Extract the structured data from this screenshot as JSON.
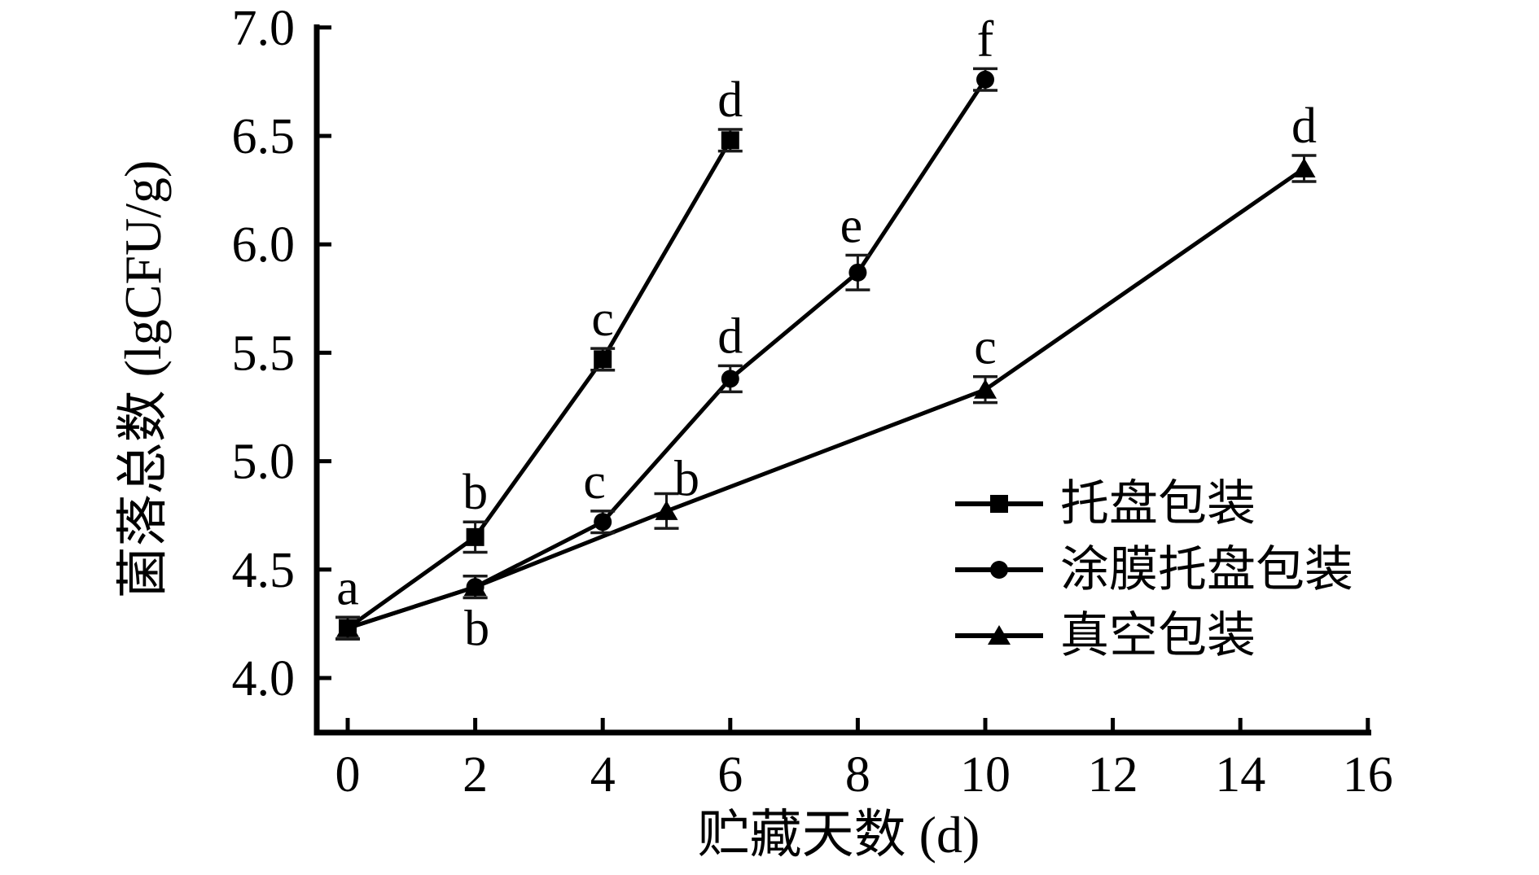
{
  "figure": {
    "description": "Line chart of total bacterial colony count versus storage days for three packaging methods",
    "background_color": "#ffffff",
    "foreground_color": "#000000"
  },
  "chart_data": {
    "type": "line",
    "title": "",
    "xlabel": "贮藏天数 (d)",
    "ylabel": "菌落总数 (lgCFU/g)",
    "xlim": [
      0,
      16
    ],
    "ylim": [
      4.0,
      7.0
    ],
    "grid": false,
    "legend_position": "lower right inside",
    "x_ticks": [
      0,
      2,
      4,
      6,
      8,
      10,
      12,
      14,
      16
    ],
    "y_ticks": [
      "4.0",
      "4.5",
      "5.0",
      "5.5",
      "6.0",
      "6.5",
      "7.0"
    ],
    "series": [
      {
        "name": "托盘包装",
        "marker": "square",
        "color": "#000000",
        "points": [
          {
            "x": 0,
            "y": 4.23,
            "err": 0.05,
            "label": "a",
            "side": "above",
            "dx": 0,
            "dy": 0
          },
          {
            "x": 2,
            "y": 4.65,
            "err": 0.07,
            "label": "b",
            "side": "above",
            "dx": 0,
            "dy": 0
          },
          {
            "x": 4,
            "y": 5.47,
            "err": 0.05,
            "label": "c",
            "side": "above",
            "dx": 0,
            "dy": 0
          },
          {
            "x": 6,
            "y": 6.48,
            "err": 0.05,
            "label": "d",
            "side": "above",
            "dx": 0,
            "dy": 0
          }
        ]
      },
      {
        "name": "涂膜托盘包装",
        "marker": "circle",
        "color": "#000000",
        "points": [
          {
            "x": 0,
            "y": 4.23,
            "err": 0.05,
            "label": "",
            "side": "above",
            "dx": 0,
            "dy": 0
          },
          {
            "x": 2,
            "y": 4.42,
            "err": 0.05,
            "label": "b",
            "side": "below",
            "dx": 2,
            "dy": 0
          },
          {
            "x": 4,
            "y": 4.72,
            "err": 0.05,
            "label": "c",
            "side": "above",
            "dx": -10,
            "dy": 0
          },
          {
            "x": 6,
            "y": 5.38,
            "err": 0.06,
            "label": "d",
            "side": "above",
            "dx": 0,
            "dy": 0
          },
          {
            "x": 8,
            "y": 5.87,
            "err": 0.08,
            "label": "e",
            "side": "above",
            "dx": -8,
            "dy": 0
          },
          {
            "x": 10,
            "y": 6.76,
            "err": 0.05,
            "label": "f",
            "side": "above",
            "dx": 0,
            "dy": 0
          }
        ]
      },
      {
        "name": "真空包装",
        "marker": "triangle",
        "color": "#000000",
        "points": [
          {
            "x": 0,
            "y": 4.23,
            "err": 0.05,
            "label": "",
            "side": "above",
            "dx": 0,
            "dy": 0
          },
          {
            "x": 2,
            "y": 4.42,
            "err": 0.05,
            "label": "",
            "side": "above",
            "dx": 0,
            "dy": 0
          },
          {
            "x": 5,
            "y": 4.77,
            "err": 0.08,
            "label": "b",
            "side": "above",
            "dx": 25,
            "dy": 18
          },
          {
            "x": 10,
            "y": 5.33,
            "err": 0.06,
            "label": "c",
            "side": "above",
            "dx": 0,
            "dy": 0
          },
          {
            "x": 15,
            "y": 6.35,
            "err": 0.06,
            "label": "d",
            "side": "above",
            "dx": 0,
            "dy": 0
          }
        ]
      }
    ],
    "legend": {
      "items": [
        {
          "label": "托盘包装",
          "marker": "square"
        },
        {
          "label": "涂膜托盘包装",
          "marker": "circle"
        },
        {
          "label": "真空包装",
          "marker": "triangle"
        }
      ]
    }
  }
}
